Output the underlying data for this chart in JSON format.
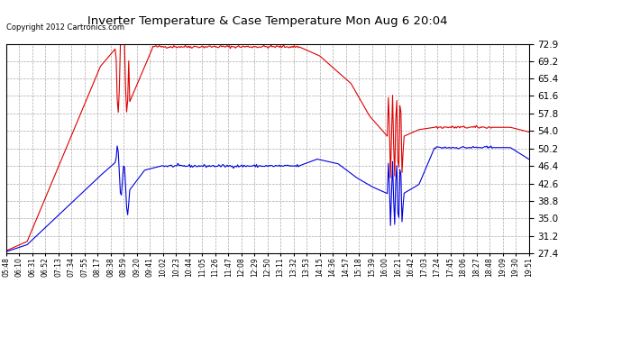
{
  "title": "Inverter Temperature & Case Temperature Mon Aug 6 20:04",
  "copyright": "Copyright 2012 Cartronics.com",
  "yticks": [
    27.4,
    31.2,
    35.0,
    38.8,
    42.6,
    46.4,
    50.2,
    54.0,
    57.8,
    61.6,
    65.4,
    69.2,
    72.9
  ],
  "ylim": [
    27.4,
    72.9
  ],
  "bg_color": "#ffffff",
  "plot_bg_color": "#ffffff",
  "grid_color": "#aaaaaa",
  "case_color": "#0000dd",
  "inverter_color": "#dd0000",
  "legend_case_bg": "#0000aa",
  "legend_inv_bg": "#cc0000",
  "xtick_labels": [
    "05:48",
    "06:10",
    "06:31",
    "06:52",
    "07:13",
    "07:34",
    "07:55",
    "08:17",
    "08:38",
    "08:59",
    "09:20",
    "09:41",
    "10:02",
    "10:23",
    "10:44",
    "11:05",
    "11:26",
    "11:47",
    "12:08",
    "12:29",
    "12:50",
    "13:11",
    "13:32",
    "13:53",
    "14:15",
    "14:36",
    "14:57",
    "15:18",
    "15:39",
    "16:00",
    "16:21",
    "16:42",
    "17:03",
    "17:24",
    "17:45",
    "18:06",
    "18:27",
    "18:48",
    "19:09",
    "19:30",
    "19:51"
  ],
  "n_points": 500
}
